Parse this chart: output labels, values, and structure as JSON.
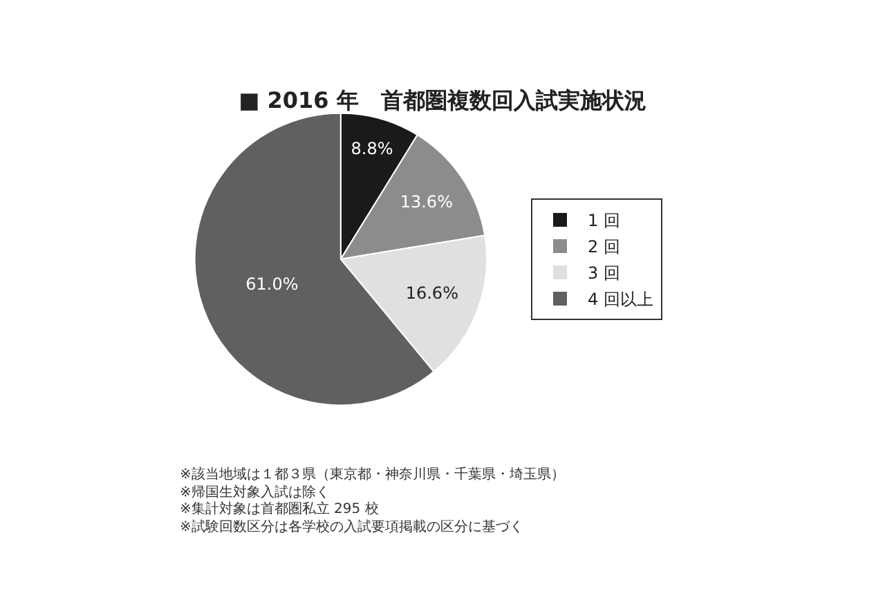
{
  "chart_data": {
    "type": "pie",
    "title": "■ 2016 年　首都圏複数回入試実施状況",
    "categories": [
      "1 回",
      "2 回",
      "3 回",
      "4 回以上"
    ],
    "values": [
      8.8,
      13.6,
      16.6,
      61.0
    ],
    "value_labels": [
      "8.8%",
      "13.6%",
      "16.6%",
      "61.0%"
    ],
    "colors": [
      "#1a1a1a",
      "#8c8c8c",
      "#e0e0e0",
      "#606060"
    ],
    "legend": "right",
    "annotations": [
      "※該当地域は１都３県（東京都・神奈川県・千葉県・埼玉県）",
      "※帰国生対象入試は除く",
      "※集計対象は首都圏私立 295 校",
      "※試験回数区分は各学校の入試要項掲載の区分に基づく"
    ]
  }
}
